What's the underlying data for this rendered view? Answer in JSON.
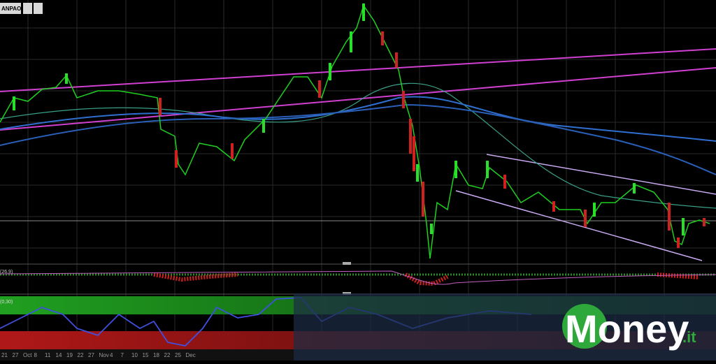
{
  "header": {
    "symbol": "ANPAOLO"
  },
  "panels": {
    "macd": "(26,9)",
    "oscillator": "(0,30)"
  },
  "x_axis": {
    "labels": [
      "21",
      "27",
      "Oct",
      "8",
      "11",
      "14",
      "19",
      "22",
      "27",
      "Nov",
      "4",
      "7",
      "10",
      "15",
      "18",
      "22",
      "25",
      "Dec"
    ]
  },
  "logo": {
    "name": "Money",
    "suffix": ".it"
  }
}
